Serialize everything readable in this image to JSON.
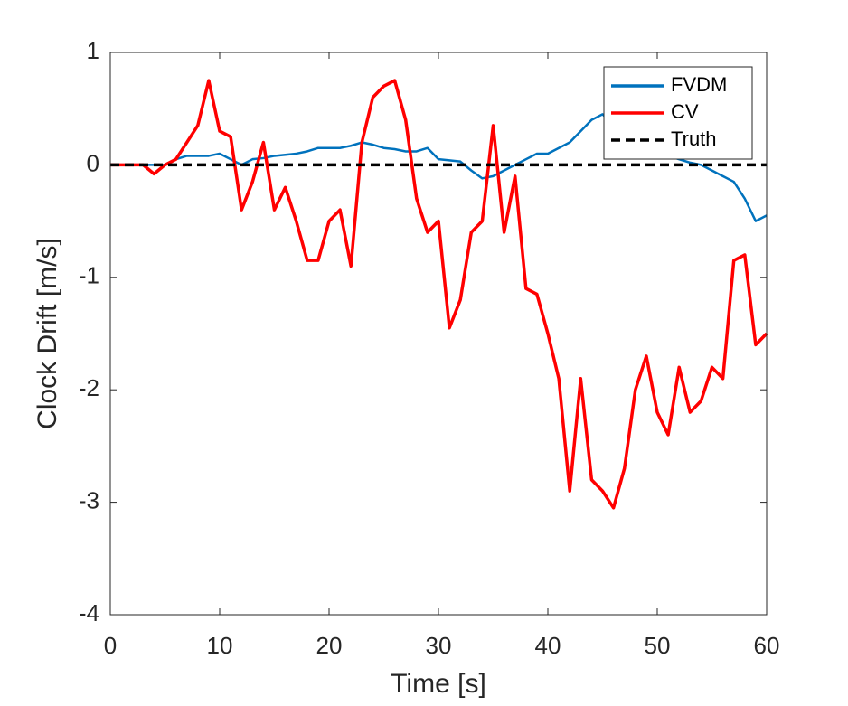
{
  "chart_data": {
    "type": "line",
    "xlabel": "Time [s]",
    "ylabel": "Clock Drift [m/s]",
    "x": [
      0,
      1,
      2,
      3,
      4,
      5,
      6,
      7,
      8,
      9,
      10,
      11,
      12,
      13,
      14,
      15,
      16,
      17,
      18,
      19,
      20,
      21,
      22,
      23,
      24,
      25,
      26,
      27,
      28,
      29,
      30,
      31,
      32,
      33,
      34,
      35,
      36,
      37,
      38,
      39,
      40,
      41,
      42,
      43,
      44,
      45,
      46,
      47,
      48,
      49,
      50,
      51,
      52,
      53,
      54,
      55,
      56,
      57,
      58,
      59,
      60
    ],
    "series": [
      {
        "name": "FVDM",
        "color": "#0072BD",
        "line_style": "solid",
        "values": [
          0,
          0,
          0,
          0,
          0,
          0,
          0.05,
          0.08,
          0.08,
          0.08,
          0.1,
          0.05,
          0,
          0.05,
          0.06,
          0.08,
          0.09,
          0.1,
          0.12,
          0.15,
          0.15,
          0.15,
          0.17,
          0.2,
          0.18,
          0.15,
          0.14,
          0.12,
          0.12,
          0.15,
          0.05,
          0.04,
          0.03,
          -0.05,
          -0.12,
          -0.1,
          -0.05,
          0,
          0.05,
          0.1,
          0.1,
          0.15,
          0.2,
          0.3,
          0.4,
          0.45,
          0.35,
          0.3,
          0.2,
          0.15,
          0.1,
          0.08,
          0.05,
          0.02,
          0,
          -0.05,
          -0.1,
          -0.15,
          -0.3,
          -0.5,
          -0.45
        ]
      },
      {
        "name": "CV",
        "color": "#FF0000",
        "line_style": "solid",
        "values": [
          0,
          0,
          0,
          0,
          -0.08,
          0,
          0.05,
          0.2,
          0.35,
          0.75,
          0.3,
          0.25,
          -0.4,
          -0.15,
          0.2,
          -0.4,
          -0.2,
          -0.5,
          -0.85,
          -0.85,
          -0.5,
          -0.4,
          -0.9,
          0.2,
          0.6,
          0.7,
          0.75,
          0.4,
          -0.3,
          -0.6,
          -0.5,
          -1.45,
          -1.2,
          -0.6,
          -0.5,
          0.35,
          -0.6,
          -0.1,
          -1.1,
          -1.15,
          -1.5,
          -1.9,
          -2.9,
          -1.9,
          -2.8,
          -2.9,
          -3.05,
          -2.7,
          -2.0,
          -1.7,
          -2.2,
          -2.4,
          -1.8,
          -2.2,
          -2.1,
          -1.8,
          -1.9,
          -0.85,
          -0.8,
          -1.6,
          -1.5
        ]
      },
      {
        "name": "Truth",
        "color": "#000000",
        "line_style": "dashed",
        "values": [
          0,
          0,
          0,
          0,
          0,
          0,
          0,
          0,
          0,
          0,
          0,
          0,
          0,
          0,
          0,
          0,
          0,
          0,
          0,
          0,
          0,
          0,
          0,
          0,
          0,
          0,
          0,
          0,
          0,
          0,
          0,
          0,
          0,
          0,
          0,
          0,
          0,
          0,
          0,
          0,
          0,
          0,
          0,
          0,
          0,
          0,
          0,
          0,
          0,
          0,
          0,
          0,
          0,
          0,
          0,
          0,
          0,
          0,
          0,
          0,
          0
        ]
      }
    ],
    "xlim": [
      0,
      60
    ],
    "xticks": [
      0,
      10,
      20,
      30,
      40,
      50,
      60
    ],
    "ylim": [
      -4,
      1
    ],
    "yticks": [
      -4,
      -3,
      -2,
      -1,
      0,
      1
    ],
    "grid": false,
    "legend": "northeast"
  }
}
